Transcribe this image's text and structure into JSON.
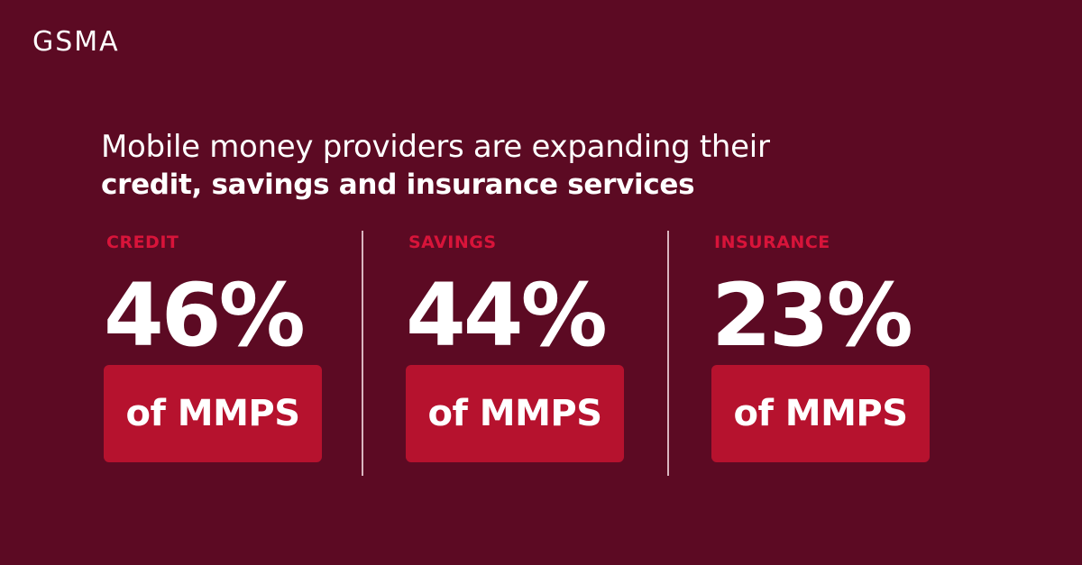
{
  "brand": {
    "logo": "GSMA"
  },
  "headline": {
    "line1": "Mobile money providers are expanding their",
    "line2": "credit, savings and insurance services"
  },
  "stats": [
    {
      "label": "CREDIT",
      "value": "46%",
      "badge": "of MMPS"
    },
    {
      "label": "SAVINGS",
      "value": "44%",
      "badge": "of MMPS"
    },
    {
      "label": "INSURANCE",
      "value": "23%",
      "badge": "of MMPS"
    }
  ],
  "colors": {
    "background": "#5c0a23",
    "accent_label": "#d8143a",
    "badge": "#b6122e",
    "text": "#ffffff"
  }
}
